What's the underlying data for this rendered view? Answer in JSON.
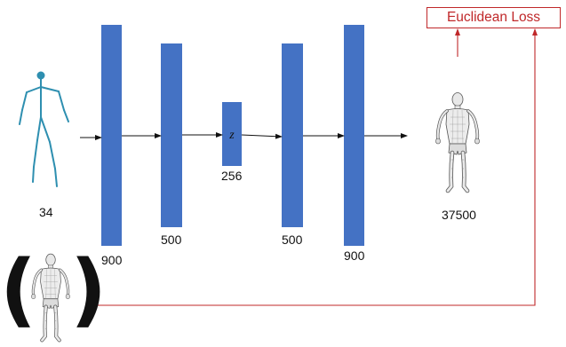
{
  "input_dim": "34",
  "layers": [
    "900",
    "500",
    "256",
    "500",
    "900"
  ],
  "latent_symbol": "z",
  "output_dim": "37500",
  "loss_label": "Euclidean Loss",
  "colors": {
    "layer_fill": "#4472C4",
    "skeleton": "#2e8fb0",
    "loss": "#c0282a",
    "arrow": "#111111",
    "mesh": "#555555"
  },
  "icons": {
    "input": "stick-skeleton-icon",
    "output": "body-mesh-icon",
    "ground_truth": "body-mesh-icon"
  }
}
